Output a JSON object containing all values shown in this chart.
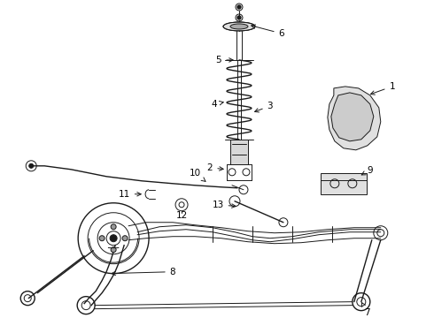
{
  "bg_color": "#ffffff",
  "line_color": "#1a1a1a",
  "label_color": "#000000",
  "fig_width": 4.9,
  "fig_height": 3.6,
  "dpi": 100
}
